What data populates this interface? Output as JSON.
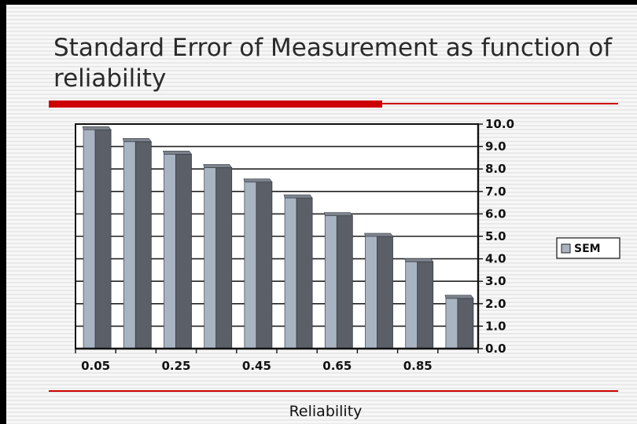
{
  "title": "Standard Error of Measurement as function of reliability",
  "chart_data": {
    "type": "bar",
    "title": "Standard Error of Measurement as function of reliability",
    "xlabel": "Reliability",
    "ylabel": "",
    "x": [
      0.05,
      0.15,
      0.25,
      0.35,
      0.45,
      0.55,
      0.65,
      0.75,
      0.85,
      0.95
    ],
    "x_tick_labels": [
      "0.05",
      "0.25",
      "0.45",
      "0.65",
      "0.85"
    ],
    "y_tick_labels": [
      "0.0",
      "1.0",
      "2.0",
      "3.0",
      "4.0",
      "5.0",
      "6.0",
      "7.0",
      "8.0",
      "9.0",
      "10.0"
    ],
    "ylim": [
      0,
      10
    ],
    "y_axis_side": "right",
    "grid": true,
    "legend_position": "right",
    "series": [
      {
        "name": "SEM",
        "values": [
          9.75,
          9.22,
          8.66,
          8.06,
          7.42,
          6.71,
          5.92,
          5.0,
          3.87,
          2.24
        ]
      }
    ],
    "colors": {
      "bar_front": "#5a5f68",
      "bar_left_face": "#a9b4c3",
      "bar_top": "#7d848e",
      "gridline": "#222222",
      "plot_background": "#ffffff"
    }
  }
}
